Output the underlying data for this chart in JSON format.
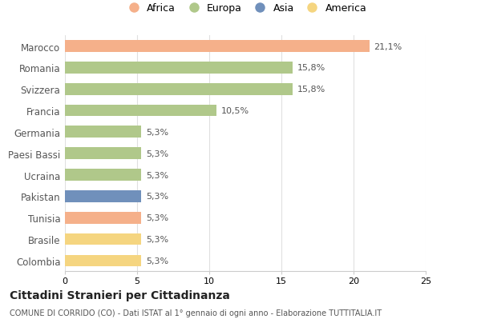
{
  "categories": [
    "Colombia",
    "Brasile",
    "Tunisia",
    "Pakistan",
    "Ucraina",
    "Paesi Bassi",
    "Germania",
    "Francia",
    "Svizzera",
    "Romania",
    "Marocco"
  ],
  "values": [
    5.3,
    5.3,
    5.3,
    5.3,
    5.3,
    5.3,
    5.3,
    10.5,
    15.8,
    15.8,
    21.1
  ],
  "labels": [
    "5,3%",
    "5,3%",
    "5,3%",
    "5,3%",
    "5,3%",
    "5,3%",
    "5,3%",
    "10,5%",
    "15,8%",
    "15,8%",
    "21,1%"
  ],
  "colors": [
    "#f5d580",
    "#f5d580",
    "#f5b08a",
    "#7090bb",
    "#b0c88a",
    "#b0c88a",
    "#b0c88a",
    "#b0c88a",
    "#b0c88a",
    "#b0c88a",
    "#f5b08a"
  ],
  "legend_labels": [
    "Africa",
    "Europa",
    "Asia",
    "America"
  ],
  "legend_colors": [
    "#f5b08a",
    "#b0c88a",
    "#7090bb",
    "#f5d580"
  ],
  "title": "Cittadini Stranieri per Cittadinanza",
  "subtitle": "COMUNE DI CORRIDO (CO) - Dati ISTAT al 1° gennaio di ogni anno - Elaborazione TUTTITALIA.IT",
  "xlim": [
    0,
    25
  ],
  "xticks": [
    0,
    5,
    10,
    15,
    20,
    25
  ],
  "background_color": "#ffffff",
  "grid_color": "#e0e0e0",
  "bar_height": 0.55
}
